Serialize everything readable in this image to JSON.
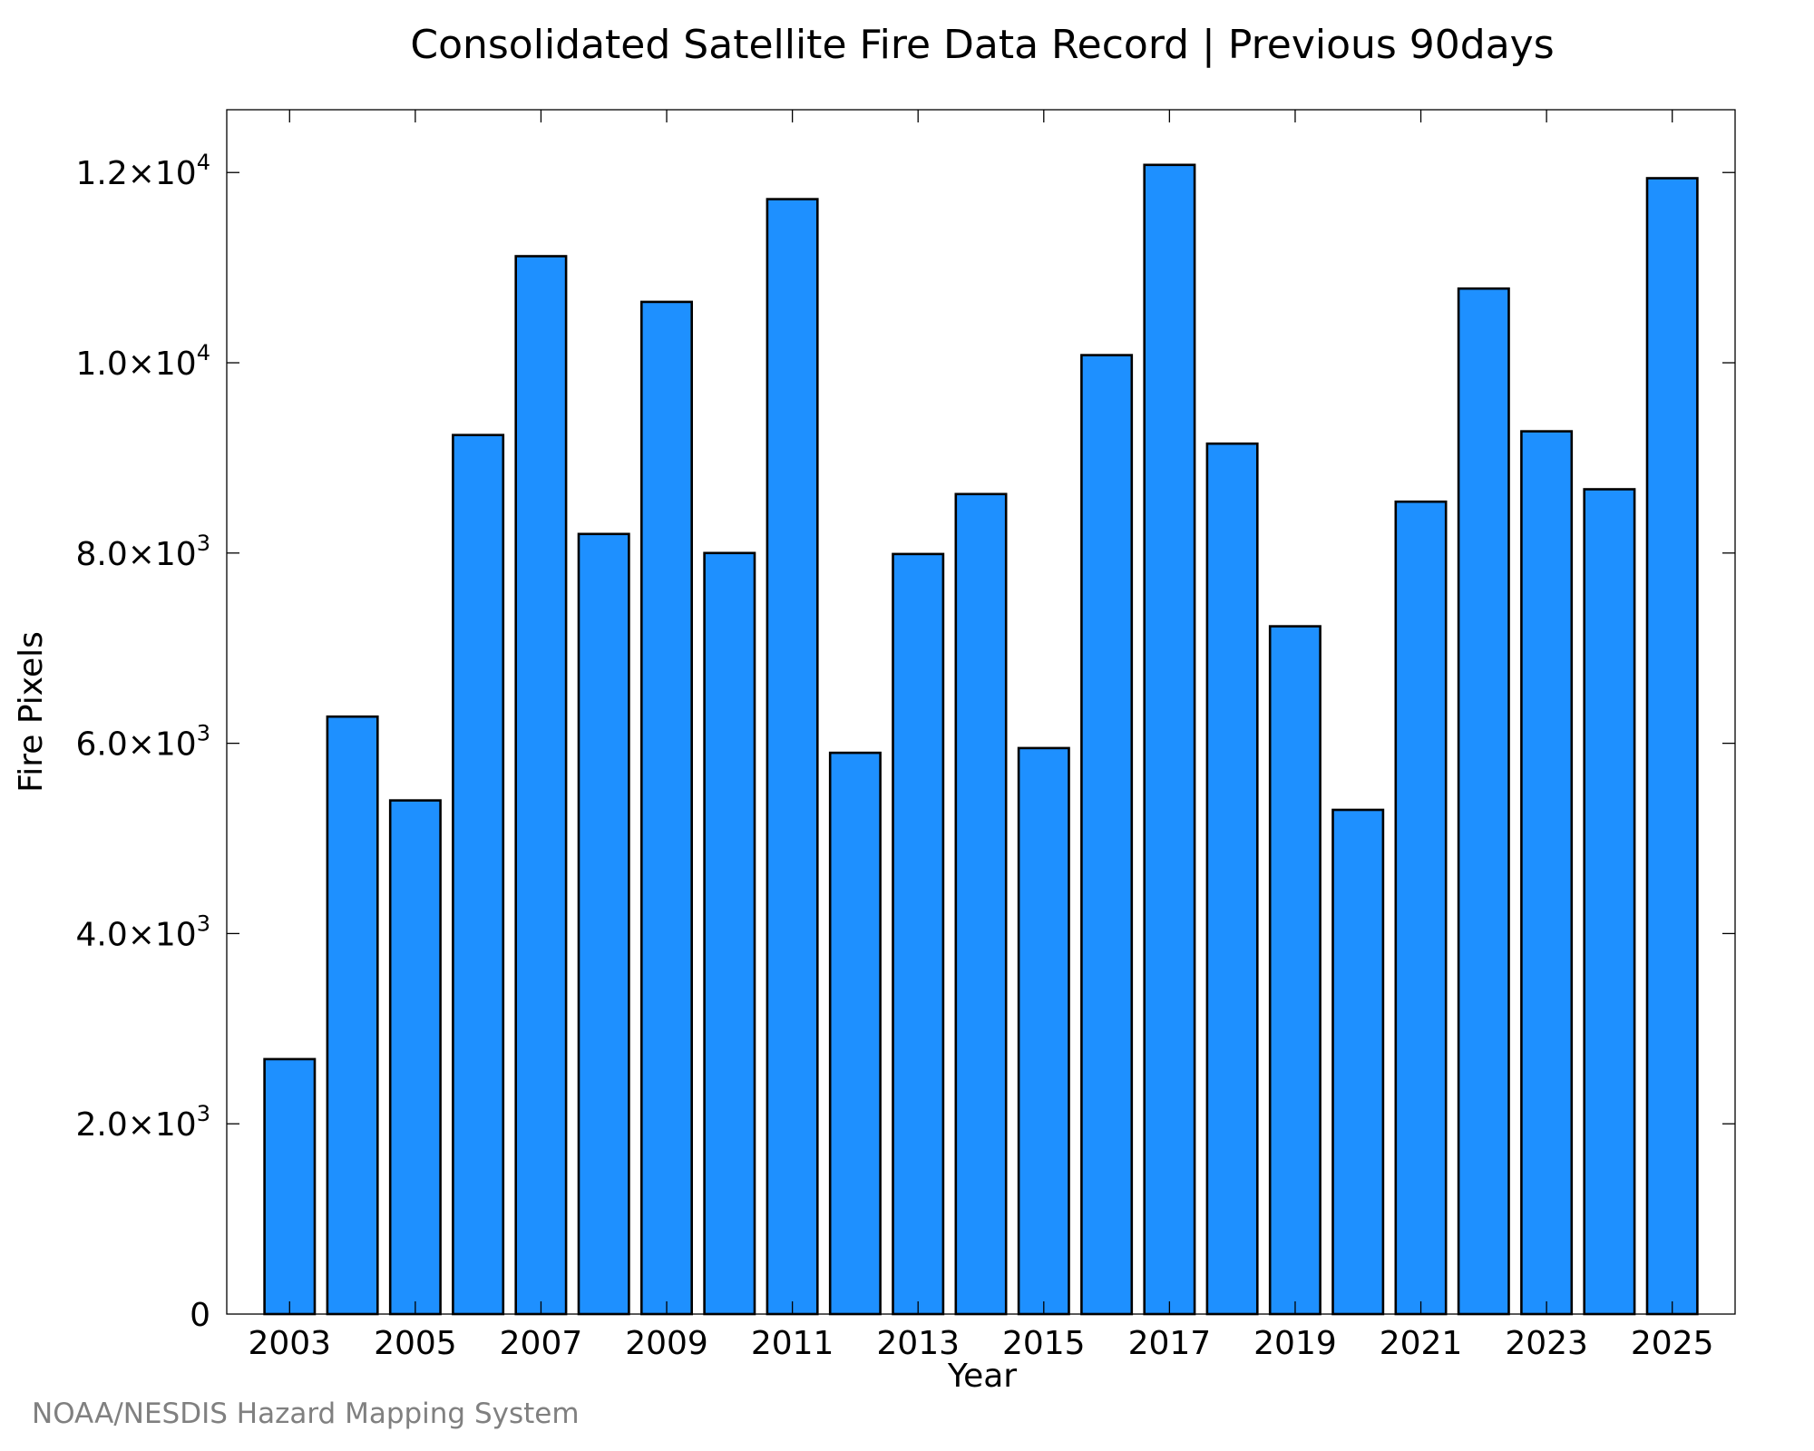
{
  "footer": {
    "credit": "NOAA/NESDIS Hazard Mapping System"
  },
  "colors": {
    "bar_fill": "#1e90ff",
    "bar_stroke": "#000000",
    "axis": "#000000",
    "credit_text": "#808080"
  },
  "chart_data": {
    "type": "bar",
    "title": "Consolidated Satellite Fire Data Record | Previous 90days",
    "xlabel": "Year",
    "ylabel": "Fire Pixels",
    "categories": [
      "2003",
      "2004",
      "2005",
      "2006",
      "2007",
      "2008",
      "2009",
      "2010",
      "2011",
      "2012",
      "2013",
      "2014",
      "2015",
      "2016",
      "2017",
      "2018",
      "2019",
      "2020",
      "2021",
      "2022",
      "2023",
      "2024",
      "2025"
    ],
    "values": [
      2680,
      6280,
      5400,
      9240,
      11120,
      8200,
      10640,
      8000,
      11720,
      5900,
      7990,
      8620,
      5950,
      10080,
      12080,
      9150,
      7230,
      5300,
      8540,
      10780,
      9280,
      8670,
      11940
    ],
    "xticks": [
      "2003",
      "2005",
      "2007",
      "2009",
      "2011",
      "2013",
      "2015",
      "2017",
      "2019",
      "2021",
      "2023",
      "2025"
    ],
    "yticks": [
      {
        "value": 0,
        "mantissa": "0",
        "exp": ""
      },
      {
        "value": 2000,
        "mantissa": "2.0×10",
        "exp": "3"
      },
      {
        "value": 4000,
        "mantissa": "4.0×10",
        "exp": "3"
      },
      {
        "value": 6000,
        "mantissa": "6.0×10",
        "exp": "3"
      },
      {
        "value": 8000,
        "mantissa": "8.0×10",
        "exp": "3"
      },
      {
        "value": 10000,
        "mantissa": "1.0×10",
        "exp": "4"
      },
      {
        "value": 12000,
        "mantissa": "1.2×10",
        "exp": "4"
      }
    ],
    "ylim": [
      0,
      12660
    ],
    "xlim": [
      2002.0,
      2026.0
    ],
    "grid": false,
    "legend": "none"
  }
}
